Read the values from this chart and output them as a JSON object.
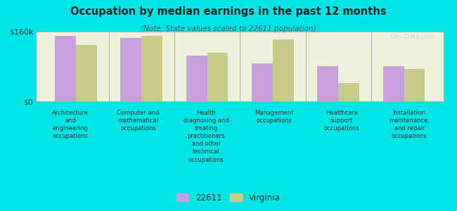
{
  "title": "Occupation by median earnings in the past 12 months",
  "subtitle": "(Note: State values scaled to 22611 population)",
  "background_color": "#00e5e5",
  "plot_bg_color": "#eef2dc",
  "ylim": [
    0,
    160000
  ],
  "ytick_labels": [
    "$0",
    "$160k"
  ],
  "categories": [
    "Architecture\nand\nengineering\noccupations",
    "Computer and\nmathematical\noccupations",
    "Health\ndiagnosing and\ntreating\npractitioners\nand other\ntechnical\noccupations",
    "Management\noccupations",
    "Healthcare\nsupport\noccupations",
    "Installation,\nmaintenance,\nand repair\noccupations"
  ],
  "values_22611": [
    150000,
    145000,
    105000,
    88000,
    80000,
    80000
  ],
  "values_virginia": [
    130000,
    150000,
    112000,
    142000,
    42000,
    74000
  ],
  "color_22611": "#c9a0dc",
  "color_virginia": "#c8cc88",
  "legend_label_1": "22611",
  "legend_label_2": "Virginia",
  "bar_width": 0.32,
  "watermark": "City-Data.com"
}
